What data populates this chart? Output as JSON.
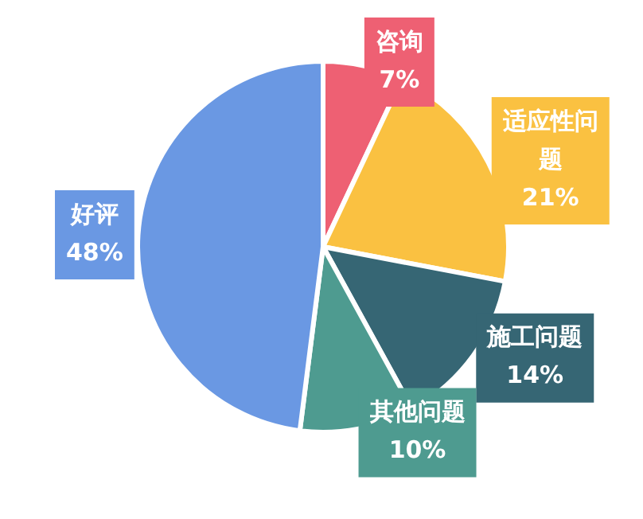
{
  "chart_data": {
    "type": "pie",
    "categories": [
      "咨询",
      "适应性问题",
      "施工问题",
      "其他问题",
      "好评"
    ],
    "values": [
      7,
      21,
      14,
      10,
      48
    ],
    "colors": [
      "#ee6073",
      "#fac141",
      "#366674",
      "#4e9b90",
      "#6a98e3"
    ],
    "value_labels": [
      "7%",
      "21%",
      "14%",
      "10%",
      "48%"
    ],
    "legend": false
  }
}
